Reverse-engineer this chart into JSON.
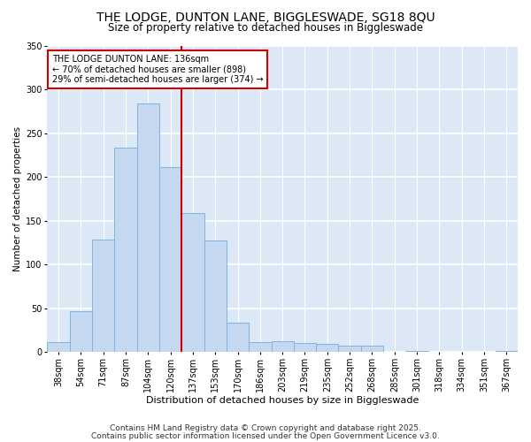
{
  "title": "THE LODGE, DUNTON LANE, BIGGLESWADE, SG18 8QU",
  "subtitle": "Size of property relative to detached houses in Biggleswade",
  "xlabel": "Distribution of detached houses by size in Biggleswade",
  "ylabel": "Number of detached properties",
  "categories": [
    "38sqm",
    "54sqm",
    "71sqm",
    "87sqm",
    "104sqm",
    "120sqm",
    "137sqm",
    "153sqm",
    "170sqm",
    "186sqm",
    "203sqm",
    "219sqm",
    "235sqm",
    "252sqm",
    "268sqm",
    "285sqm",
    "301sqm",
    "318sqm",
    "334sqm",
    "351sqm",
    "367sqm"
  ],
  "values": [
    11,
    47,
    128,
    233,
    284,
    211,
    159,
    127,
    34,
    11,
    12,
    10,
    9,
    7,
    7,
    0,
    1,
    0,
    0,
    0,
    1
  ],
  "bar_color": "#c5d8f0",
  "bar_edge_color": "#7fb3e0",
  "vline_color": "#cc0000",
  "annotation_text": "THE LODGE DUNTON LANE: 136sqm\n← 70% of detached houses are smaller (898)\n29% of semi-detached houses are larger (374) →",
  "annotation_box_color": "#ffffff",
  "annotation_box_edge_color": "#cc0000",
  "ylim": [
    0,
    350
  ],
  "yticks": [
    0,
    50,
    100,
    150,
    200,
    250,
    300,
    350
  ],
  "plot_bg_color": "#dce8f5",
  "fig_bg_color": "#ffffff",
  "grid_color": "#ffffff",
  "footer_line1": "Contains HM Land Registry data © Crown copyright and database right 2025.",
  "footer_line2": "Contains public sector information licensed under the Open Government Licence v3.0.",
  "title_fontsize": 10,
  "subtitle_fontsize": 8.5,
  "xlabel_fontsize": 8,
  "ylabel_fontsize": 7.5,
  "tick_fontsize": 7,
  "annotation_fontsize": 7,
  "footer_fontsize": 6.5
}
